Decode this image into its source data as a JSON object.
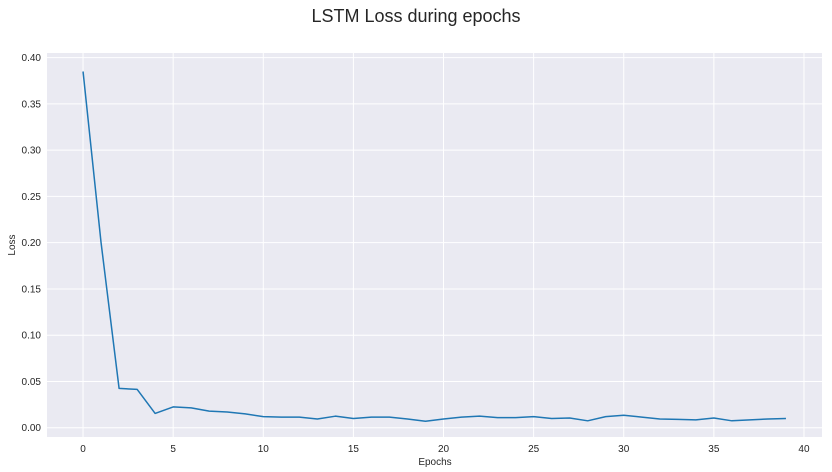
{
  "chart_data": {
    "type": "line",
    "title": "LSTM Loss during epochs",
    "xlabel": "Epochs",
    "ylabel": "Loss",
    "xlim": [
      -2,
      41
    ],
    "ylim": [
      -0.01,
      0.405
    ],
    "grid": true,
    "legend": "none",
    "xticks": [
      0,
      5,
      10,
      15,
      20,
      25,
      30,
      35,
      40
    ],
    "xtick_labels": [
      "0",
      "5",
      "10",
      "15",
      "20",
      "25",
      "30",
      "35",
      "40"
    ],
    "yticks": [
      0.0,
      0.05,
      0.1,
      0.15,
      0.2,
      0.25,
      0.3,
      0.35,
      0.4
    ],
    "ytick_labels": [
      "0.00",
      "0.05",
      "0.10",
      "0.15",
      "0.20",
      "0.25",
      "0.30",
      "0.35",
      "0.40"
    ],
    "series": [
      {
        "x": [
          0,
          1,
          2,
          3,
          4,
          5,
          6,
          7,
          8,
          9,
          10,
          11,
          12,
          13,
          14,
          15,
          16,
          17,
          18,
          19,
          20,
          21,
          22,
          23,
          24,
          25,
          26,
          27,
          28,
          29,
          30,
          31,
          32,
          33,
          34,
          35,
          36,
          37,
          38,
          39
        ],
        "y": [
          0.385,
          0.2,
          0.0425,
          0.0415,
          0.0155,
          0.0225,
          0.0215,
          0.018,
          0.017,
          0.015,
          0.012,
          0.0115,
          0.0115,
          0.0095,
          0.0125,
          0.01,
          0.0115,
          0.0115,
          0.0095,
          0.007,
          0.0095,
          0.0115,
          0.0125,
          0.011,
          0.011,
          0.012,
          0.01,
          0.0105,
          0.0075,
          0.012,
          0.0135,
          0.0115,
          0.0095,
          0.009,
          0.0085,
          0.0105,
          0.0075,
          0.0085,
          0.0095,
          0.01
        ],
        "color": "#1f77b4"
      }
    ],
    "colors": {
      "plot_background": "#eaeaf2",
      "grid": "#ffffff",
      "line": "#1f77b4",
      "text": "#262626"
    }
  }
}
